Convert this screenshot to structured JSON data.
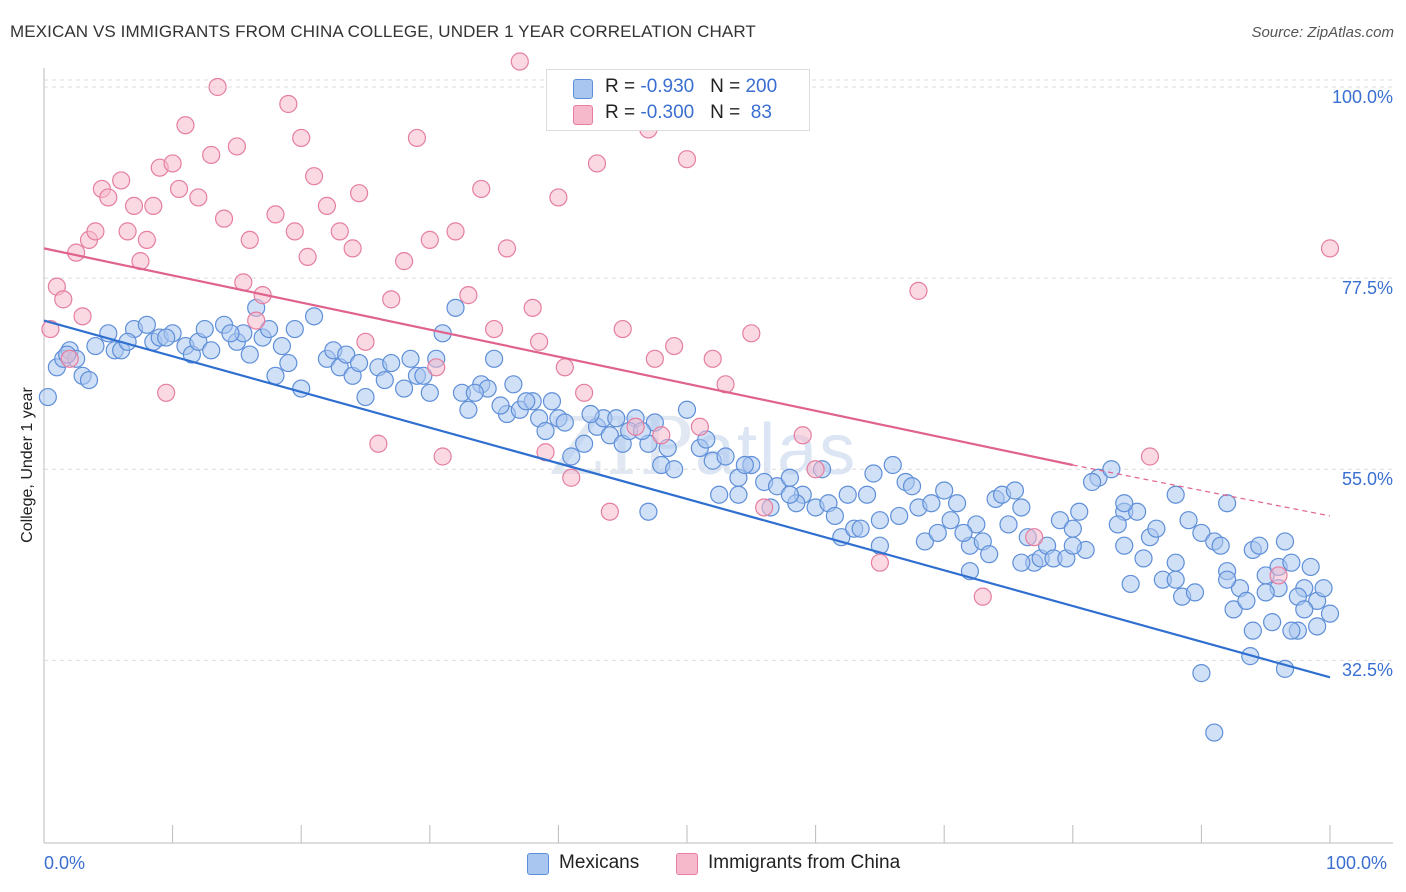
{
  "title": "MEXICAN VS IMMIGRANTS FROM CHINA COLLEGE, UNDER 1 YEAR CORRELATION CHART",
  "source": "Source: ZipAtlas.com",
  "watermark": {
    "zip": "ZIP",
    "atlas": "atlas"
  },
  "legend": {
    "rows": [
      {
        "r_label": "R = ",
        "r_value": "-0.930",
        "n_label": "N = ",
        "n_value": "200",
        "color": "#a9c6f0",
        "border": "#5f8fd8"
      },
      {
        "r_label": "R = ",
        "r_value": "-0.300",
        "n_label": "N = ",
        "n_value": " 83",
        "color": "#f6b9cc",
        "border": "#e57ea0"
      }
    ]
  },
  "bottom_legend": [
    {
      "label": "Mexicans",
      "color": "#a9c6f0",
      "border": "#5f8fd8"
    },
    {
      "label": "Immigrants from China",
      "color": "#f6b9cc",
      "border": "#e57ea0"
    }
  ],
  "chart_data": {
    "type": "scatter",
    "title": "MEXICAN VS IMMIGRANTS FROM CHINA COLLEGE, UNDER 1 YEAR CORRELATION CHART",
    "xlabel": "",
    "ylabel": "College, Under 1 year",
    "x_tick_labels": [
      "0.0%",
      "100.0%"
    ],
    "y_tick_labels": [
      "32.5%",
      "55.0%",
      "77.5%",
      "100.0%"
    ],
    "y_ticks": [
      32.5,
      55.0,
      77.5,
      100.0
    ],
    "xlim": [
      0,
      100
    ],
    "ylim": [
      11,
      102
    ],
    "grid": "horizontal dashed",
    "legend_position": "top-center",
    "series": [
      {
        "name": "Mexicans",
        "color": "#5f8fd8",
        "fill": "#a9c6f0",
        "trend": {
          "x": [
            0,
            100
          ],
          "y": [
            72.5,
            30.5
          ],
          "color": "#2f6fcf"
        },
        "points": [
          [
            0.3,
            63.5
          ],
          [
            1,
            67
          ],
          [
            1.5,
            68
          ],
          [
            2,
            69
          ],
          [
            2.5,
            68
          ],
          [
            3,
            66
          ],
          [
            4,
            69.5
          ],
          [
            5,
            71
          ],
          [
            5.5,
            69
          ],
          [
            6,
            69
          ],
          [
            7,
            71.5
          ],
          [
            8,
            72
          ],
          [
            8.5,
            70
          ],
          [
            9,
            70.5
          ],
          [
            10,
            71
          ],
          [
            11,
            69.5
          ],
          [
            11.5,
            68.5
          ],
          [
            12,
            70
          ],
          [
            13,
            69
          ],
          [
            14,
            72
          ],
          [
            15,
            70
          ],
          [
            15.5,
            71
          ],
          [
            16,
            68.5
          ],
          [
            16.5,
            74
          ],
          [
            17,
            70.5
          ],
          [
            17.5,
            71.5
          ],
          [
            18,
            66
          ],
          [
            19,
            67.5
          ],
          [
            20,
            64.5
          ],
          [
            21,
            73
          ],
          [
            22,
            68
          ],
          [
            22.5,
            69
          ],
          [
            23,
            67
          ],
          [
            23.5,
            68.5
          ],
          [
            24,
            66
          ],
          [
            25,
            63.5
          ],
          [
            26,
            67
          ],
          [
            27,
            67.5
          ],
          [
            28,
            64.5
          ],
          [
            28.5,
            68
          ],
          [
            29,
            66
          ],
          [
            30,
            64
          ],
          [
            31,
            71
          ],
          [
            32,
            74
          ],
          [
            32.5,
            64
          ],
          [
            33,
            62
          ],
          [
            34,
            65
          ],
          [
            34.5,
            64.5
          ],
          [
            35,
            68
          ],
          [
            36,
            61.5
          ],
          [
            36.5,
            65
          ],
          [
            37,
            62
          ],
          [
            38,
            63
          ],
          [
            38.5,
            61
          ],
          [
            39,
            59.5
          ],
          [
            40,
            61
          ],
          [
            41,
            56.5
          ],
          [
            42,
            58
          ],
          [
            43,
            60
          ],
          [
            43.5,
            61
          ],
          [
            44,
            59
          ],
          [
            44.5,
            61
          ],
          [
            45,
            58
          ],
          [
            46,
            61
          ],
          [
            47,
            58
          ],
          [
            47.5,
            60.5
          ],
          [
            48,
            55.5
          ],
          [
            49,
            55
          ],
          [
            50,
            62
          ],
          [
            51,
            57.5
          ],
          [
            51.5,
            58.5
          ],
          [
            52,
            56
          ],
          [
            53,
            56.5
          ],
          [
            54,
            54
          ],
          [
            55,
            55.5
          ],
          [
            56,
            53.5
          ],
          [
            57,
            53
          ],
          [
            58,
            54
          ],
          [
            59,
            52
          ],
          [
            60,
            50.5
          ],
          [
            60.5,
            55
          ],
          [
            61,
            51
          ],
          [
            62,
            47
          ],
          [
            62.5,
            52
          ],
          [
            63,
            48
          ],
          [
            64,
            52
          ],
          [
            65,
            49
          ],
          [
            66,
            55.5
          ],
          [
            67,
            53.5
          ],
          [
            67.5,
            53
          ],
          [
            68,
            50.5
          ],
          [
            69,
            51
          ],
          [
            70,
            52.5
          ],
          [
            70.5,
            49
          ],
          [
            71,
            51
          ],
          [
            72,
            46
          ],
          [
            72.5,
            48.5
          ],
          [
            73,
            46.5
          ],
          [
            74,
            51.5
          ],
          [
            75,
            48.5
          ],
          [
            76,
            50.5
          ],
          [
            77,
            44
          ],
          [
            77.5,
            44.5
          ],
          [
            78,
            46
          ],
          [
            79,
            49
          ],
          [
            80,
            48
          ],
          [
            80.5,
            50
          ],
          [
            81,
            45.5
          ],
          [
            82,
            54
          ],
          [
            83,
            55
          ],
          [
            84,
            50
          ],
          [
            85,
            50
          ],
          [
            86,
            47
          ],
          [
            87,
            42
          ],
          [
            88,
            42
          ],
          [
            89,
            49
          ],
          [
            90,
            47.5
          ],
          [
            91,
            46.5
          ],
          [
            92,
            43
          ],
          [
            93,
            41
          ],
          [
            94,
            45.5
          ],
          [
            95,
            42.5
          ],
          [
            96,
            43.5
          ],
          [
            97,
            44
          ],
          [
            98,
            41
          ],
          [
            99,
            39.5
          ],
          [
            100,
            38
          ],
          [
            1.8,
            68.5
          ],
          [
            3.5,
            65.5
          ],
          [
            6.5,
            70
          ],
          [
            9.5,
            70.5
          ],
          [
            12.5,
            71.5
          ],
          [
            14.5,
            71
          ],
          [
            18.5,
            69.5
          ],
          [
            19.5,
            71.5
          ],
          [
            24.5,
            67.5
          ],
          [
            26.5,
            65.5
          ],
          [
            29.5,
            66
          ],
          [
            30.5,
            68
          ],
          [
            33.5,
            64
          ],
          [
            35.5,
            62.5
          ],
          [
            37.5,
            63
          ],
          [
            39.5,
            63
          ],
          [
            40.5,
            60.5
          ],
          [
            42.5,
            61.5
          ],
          [
            45.5,
            59.5
          ],
          [
            46.5,
            59.5
          ],
          [
            48.5,
            57.5
          ],
          [
            52.5,
            52
          ],
          [
            54.5,
            55.5
          ],
          [
            56.5,
            50.5
          ],
          [
            58.5,
            51
          ],
          [
            61.5,
            49.5
          ],
          [
            63.5,
            48
          ],
          [
            64.5,
            54.5
          ],
          [
            66.5,
            49.5
          ],
          [
            68.5,
            46.5
          ],
          [
            69.5,
            47.5
          ],
          [
            71.5,
            47.5
          ],
          [
            73.5,
            45
          ],
          [
            74.5,
            52
          ],
          [
            75.5,
            52.5
          ],
          [
            76.5,
            47
          ],
          [
            78.5,
            44.5
          ],
          [
            79.5,
            44.5
          ],
          [
            81.5,
            53.5
          ],
          [
            83.5,
            48.5
          ],
          [
            84.5,
            41.5
          ],
          [
            85.5,
            44.5
          ],
          [
            86.5,
            48
          ],
          [
            88.5,
            40
          ],
          [
            89.5,
            40.5
          ],
          [
            91.5,
            46
          ],
          [
            92.5,
            38.5
          ],
          [
            93.5,
            39.5
          ],
          [
            94.5,
            46
          ],
          [
            95.5,
            37
          ],
          [
            96.5,
            46.5
          ],
          [
            97.5,
            40
          ],
          [
            98.5,
            43.5
          ],
          [
            99.5,
            41
          ],
          [
            47,
            50
          ],
          [
            54,
            52
          ],
          [
            58,
            52
          ],
          [
            65,
            46
          ],
          [
            72,
            43
          ],
          [
            76,
            44
          ],
          [
            80,
            46
          ],
          [
            84,
            51
          ],
          [
            88,
            52
          ],
          [
            92,
            51
          ],
          [
            88,
            44
          ],
          [
            84,
            46
          ],
          [
            92,
            42
          ],
          [
            96,
            41
          ],
          [
            98,
            38.5
          ],
          [
            97.5,
            36
          ],
          [
            94,
            36
          ],
          [
            93.8,
            33
          ],
          [
            91,
            24
          ],
          [
            90,
            31
          ],
          [
            97,
            36
          ],
          [
            95,
            40.5
          ],
          [
            99,
            36.5
          ],
          [
            96.5,
            31.5
          ]
        ]
      },
      {
        "name": "Immigrants from China",
        "color": "#e57ea0",
        "fill": "#f6b9cc",
        "trend": {
          "x": [
            0,
            80
          ],
          "y": [
            81,
            55.5
          ],
          "color": "#e0638d",
          "dashed_extension": {
            "x": [
              80,
              100
            ],
            "y": [
              55.5,
              49.5
            ]
          }
        },
        "points": [
          [
            0.5,
            71.5
          ],
          [
            1,
            76.5
          ],
          [
            1.5,
            75
          ],
          [
            2.5,
            80.5
          ],
          [
            3,
            73
          ],
          [
            3.5,
            82
          ],
          [
            4,
            83
          ],
          [
            4.5,
            88
          ],
          [
            5,
            87
          ],
          [
            6,
            89
          ],
          [
            6.5,
            83
          ],
          [
            7,
            86
          ],
          [
            7.5,
            79.5
          ],
          [
            8,
            82
          ],
          [
            8.5,
            86
          ],
          [
            9,
            90.5
          ],
          [
            10,
            91
          ],
          [
            10.5,
            88
          ],
          [
            11,
            95.5
          ],
          [
            12,
            87
          ],
          [
            13,
            92
          ],
          [
            13.5,
            100
          ],
          [
            14,
            84.5
          ],
          [
            15,
            93
          ],
          [
            15.5,
            77
          ],
          [
            16,
            82
          ],
          [
            16.5,
            72.5
          ],
          [
            17,
            75.5
          ],
          [
            18,
            85
          ],
          [
            19,
            98
          ],
          [
            19.5,
            83
          ],
          [
            20,
            94
          ],
          [
            20.5,
            80
          ],
          [
            21,
            89.5
          ],
          [
            22,
            86
          ],
          [
            23,
            83
          ],
          [
            24,
            81
          ],
          [
            24.5,
            87.5
          ],
          [
            25,
            70
          ],
          [
            26,
            58
          ],
          [
            27,
            75
          ],
          [
            28,
            79.5
          ],
          [
            29,
            94
          ],
          [
            30,
            82
          ],
          [
            30.5,
            67
          ],
          [
            31,
            56.5
          ],
          [
            32,
            83
          ],
          [
            33,
            75.5
          ],
          [
            34,
            88
          ],
          [
            35,
            71.5
          ],
          [
            36,
            81
          ],
          [
            37,
            103
          ],
          [
            38,
            74
          ],
          [
            38.5,
            70
          ],
          [
            39,
            57
          ],
          [
            40,
            87
          ],
          [
            40.5,
            67
          ],
          [
            41,
            54
          ],
          [
            42,
            64
          ],
          [
            43,
            91
          ],
          [
            44,
            50
          ],
          [
            45,
            71.5
          ],
          [
            46,
            60
          ],
          [
            47,
            95
          ],
          [
            47.5,
            68
          ],
          [
            48,
            59
          ],
          [
            49,
            69.5
          ],
          [
            50,
            91.5
          ],
          [
            51,
            60
          ],
          [
            52,
            68
          ],
          [
            53,
            65
          ],
          [
            55,
            71
          ],
          [
            56,
            50.5
          ],
          [
            59,
            59
          ],
          [
            60,
            55
          ],
          [
            65,
            44
          ],
          [
            68,
            76
          ],
          [
            73,
            40
          ],
          [
            77,
            47
          ],
          [
            86,
            56.5
          ],
          [
            96,
            42.5
          ],
          [
            100,
            81
          ],
          [
            2,
            68
          ],
          [
            9.5,
            64
          ]
        ]
      }
    ]
  }
}
